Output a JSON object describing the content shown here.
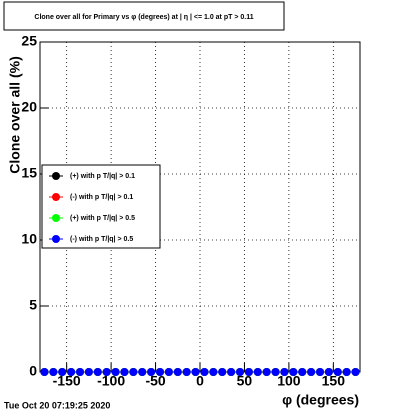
{
  "chart_data": {
    "type": "scatter",
    "title": "Clone  over all for Primary vs φ (degrees) at | η | <= 1.0 at pT > 0.11",
    "x_label": "φ (degrees)",
    "y_label": "Clone  over all (%)",
    "timestamp": "Tue Oct 20 07:19:25 2020",
    "x": [
      -175,
      -165,
      -155,
      -145,
      -135,
      -125,
      -115,
      -105,
      -95,
      -85,
      -75,
      -65,
      -55,
      -45,
      -35,
      -25,
      -15,
      -5,
      5,
      15,
      25,
      35,
      45,
      55,
      65,
      75,
      85,
      95,
      105,
      115,
      125,
      135,
      145,
      155,
      165,
      175
    ],
    "series": [
      {
        "name": "(+) with p T/|q| > 0.1",
        "color": "#000000",
        "values": [
          0,
          0,
          0,
          0,
          0,
          0,
          0,
          0,
          0,
          0,
          0,
          0,
          0,
          0,
          0,
          0,
          0,
          0,
          0,
          0,
          0,
          0,
          0,
          0,
          0,
          0,
          0,
          0,
          0,
          0,
          0,
          0,
          0,
          0,
          0,
          0
        ]
      },
      {
        "name": "(-) with p T/|q| > 0.1",
        "color": "#ff0000",
        "values": [
          0,
          0,
          0,
          0,
          0,
          0,
          0,
          0,
          0,
          0,
          0,
          0,
          0,
          0,
          0,
          0,
          0,
          0,
          0,
          0,
          0,
          0,
          0,
          0,
          0,
          0,
          0,
          0,
          0,
          0,
          0,
          0,
          0,
          0,
          0,
          0
        ]
      },
      {
        "name": "(+) with p T/|q| > 0.5",
        "color": "#00ff00",
        "values": [
          0,
          0,
          0,
          0,
          0,
          0,
          0,
          0,
          0,
          0,
          0,
          0,
          0,
          0,
          0,
          0,
          0,
          0,
          0,
          0,
          0,
          0,
          0,
          0,
          0,
          0,
          0,
          0,
          0,
          0,
          0,
          0,
          0,
          0,
          0,
          0
        ]
      },
      {
        "name": "(-) with p T/|q| > 0.5",
        "color": "#0000ff",
        "values": [
          0,
          0,
          0,
          0,
          0,
          0,
          0,
          0,
          0,
          0,
          0,
          0,
          0,
          0,
          0,
          0,
          0,
          0,
          0,
          0,
          0,
          0,
          0,
          0,
          0,
          0,
          0,
          0,
          0,
          0,
          0,
          0,
          0,
          0,
          0,
          0
        ]
      }
    ],
    "xlim": [
      -180,
      180
    ],
    "ylim": [
      0,
      25
    ],
    "xticks": [
      -150,
      -100,
      -50,
      0,
      50,
      100,
      150
    ],
    "yticks": [
      0,
      5,
      10,
      15,
      20,
      25
    ],
    "grid": true
  }
}
